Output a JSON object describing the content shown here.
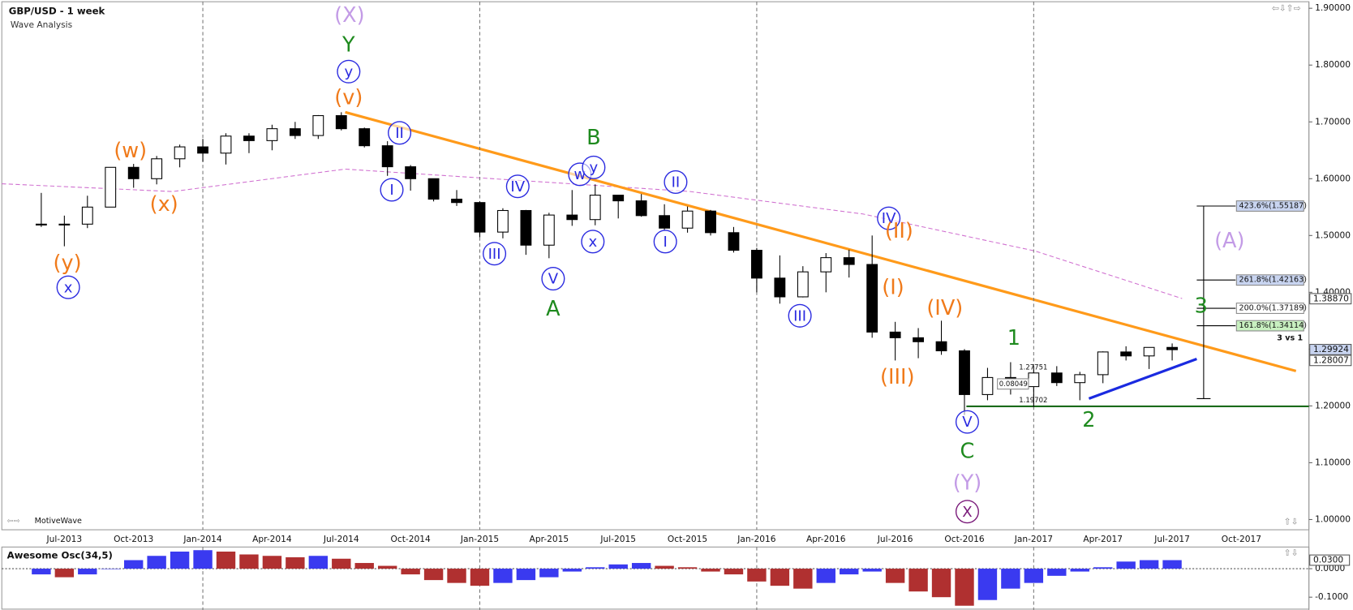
{
  "chart_data": {
    "type": "candlestick",
    "title": "GBP/USD - 1 week",
    "subtitle": "Wave Analysis",
    "source": "MotiveWave",
    "categories": [
      null,
      "Jul-2013",
      null,
      null,
      "Oct-2013",
      null,
      null,
      "Jan-2014",
      null,
      null,
      "Apr-2014",
      null,
      null,
      "Jul-2014",
      null,
      null,
      "Oct-2014",
      null,
      null,
      "Jan-2015",
      null,
      null,
      "Apr-2015",
      null,
      null,
      "Jul-2015",
      null,
      null,
      "Oct-2015",
      null,
      null,
      "Jan-2016",
      null,
      null,
      "Apr-2016",
      null,
      null,
      "Jul-2016",
      null,
      null,
      "Oct-2016",
      null,
      null,
      "Jan-2017",
      null,
      null,
      "Apr-2017",
      null,
      null,
      "Jul-2017",
      null,
      null,
      "Oct-2017",
      null
    ],
    "open": [
      1.52,
      1.52,
      1.52,
      1.55,
      1.62,
      1.6,
      1.635,
      1.656,
      1.645,
      1.675,
      1.667,
      1.688,
      1.676,
      1.711,
      1.688,
      1.658,
      1.621,
      1.6,
      1.564,
      1.558,
      1.506,
      1.544,
      1.483,
      1.536,
      1.528,
      1.571,
      1.561,
      1.535,
      1.513,
      1.543,
      1.505,
      1.474,
      1.425,
      1.392,
      1.436,
      1.461,
      1.449,
      1.33,
      1.32,
      1.313,
      1.297,
      1.22,
      1.25,
      1.234,
      1.258,
      1.241,
      1.255,
      1.295,
      1.288,
      1.303,
      null,
      null,
      null,
      null
    ],
    "high": [
      1.575,
      1.535,
      1.57,
      1.62,
      1.626,
      1.64,
      1.66,
      1.67,
      1.68,
      1.68,
      1.695,
      1.7,
      1.712,
      1.717,
      1.69,
      1.666,
      1.624,
      1.6,
      1.58,
      1.56,
      1.548,
      1.545,
      1.54,
      1.58,
      1.59,
      1.569,
      1.573,
      1.555,
      1.551,
      1.545,
      1.515,
      1.478,
      1.465,
      1.446,
      1.469,
      1.475,
      1.5,
      1.348,
      1.337,
      1.35,
      1.3,
      1.267,
      1.277,
      1.27,
      1.27,
      1.26,
      1.296,
      1.305,
      1.3,
      1.31,
      null,
      null,
      null,
      null
    ],
    "low": [
      1.515,
      1.481,
      1.513,
      1.55,
      1.584,
      1.59,
      1.62,
      1.63,
      1.625,
      1.645,
      1.65,
      1.67,
      1.67,
      1.685,
      1.655,
      1.605,
      1.579,
      1.56,
      1.552,
      1.497,
      1.495,
      1.466,
      1.46,
      1.517,
      1.518,
      1.53,
      1.533,
      1.51,
      1.505,
      1.5,
      1.47,
      1.4,
      1.38,
      1.391,
      1.4,
      1.426,
      1.32,
      1.28,
      1.284,
      1.29,
      1.184,
      1.21,
      1.22,
      1.198,
      1.235,
      1.21,
      1.24,
      1.28,
      1.265,
      1.28,
      null,
      null,
      null,
      null
    ],
    "close": [
      1.52,
      1.52,
      1.55,
      1.62,
      1.6,
      1.635,
      1.656,
      1.645,
      1.675,
      1.667,
      1.688,
      1.676,
      1.711,
      1.688,
      1.658,
      1.621,
      1.6,
      1.564,
      1.558,
      1.506,
      1.544,
      1.483,
      1.536,
      1.528,
      1.571,
      1.561,
      1.535,
      1.513,
      1.543,
      1.505,
      1.474,
      1.425,
      1.392,
      1.436,
      1.461,
      1.449,
      1.33,
      1.32,
      1.313,
      1.297,
      1.22,
      1.25,
      1.234,
      1.258,
      1.241,
      1.255,
      1.295,
      1.288,
      1.303,
      1.299,
      null,
      null,
      null,
      null
    ],
    "up_color": "#ffffff",
    "down_color": "#000000",
    "ylim": [
      0.982,
      1.91
    ],
    "yticks": [
      {
        "value": 1.0,
        "label": "1.00000"
      },
      {
        "value": 1.1,
        "label": "1.10000"
      },
      {
        "value": 1.2,
        "label": "1.20000"
      },
      {
        "value": 1.3,
        "label": "1.30000"
      },
      {
        "value": 1.4,
        "label": "1.40000"
      },
      {
        "value": 1.5,
        "label": "1.50000"
      },
      {
        "value": 1.6,
        "label": "1.60000"
      },
      {
        "value": 1.7,
        "label": "1.70000"
      },
      {
        "value": 1.8,
        "label": "1.80000"
      },
      {
        "value": 1.9,
        "label": "1.90000"
      }
    ],
    "price_tags": [
      {
        "value": 1.3887,
        "label": "1.38870"
      },
      {
        "value": 1.29924,
        "label": "1.29924"
      },
      {
        "value": 1.28007,
        "label": "1.28007"
      }
    ],
    "fib_levels": [
      {
        "value": 1.55187,
        "label": "423.6%(1.55187)",
        "color": "#c8d4f0"
      },
      {
        "value": 1.42163,
        "label": "261.8%(1.42163)",
        "color": "#c8d4f0"
      },
      {
        "value": 1.37189,
        "label": "200.0%(1.37189)",
        "color": "#ffffff"
      },
      {
        "value": 1.34114,
        "label": "161.8%(1.34114)",
        "color": "#c8f0c0"
      }
    ],
    "notes": [
      "3 vs 1",
      "1.27751",
      "0.08049",
      "1.19702"
    ],
    "wave_labels": [
      {
        "text": "(X)",
        "color": "#c39be6"
      },
      {
        "text": "Y",
        "color": "#1e8a1e"
      },
      {
        "text": "y",
        "color": "#2a2ae0",
        "circled": true
      },
      {
        "text": "(v)",
        "color": "#f07a1a"
      },
      {
        "text": "(w)",
        "color": "#f07a1a"
      },
      {
        "text": "(x)",
        "color": "#f07a1a"
      },
      {
        "text": "(y)",
        "color": "#f07a1a"
      },
      {
        "text": "x",
        "color": "#2a2ae0",
        "circled": true
      },
      {
        "text": "II",
        "color": "#2a2ae0",
        "circled": true
      },
      {
        "text": "I",
        "color": "#2a2ae0",
        "circled": true
      },
      {
        "text": "B",
        "color": "#1e8a1e"
      },
      {
        "text": "w",
        "color": "#2a2ae0",
        "circled": true
      },
      {
        "text": "y",
        "color": "#2a2ae0",
        "circled": true
      },
      {
        "text": "IV",
        "color": "#2a2ae0",
        "circled": true
      },
      {
        "text": "III",
        "color": "#2a2ae0",
        "circled": true
      },
      {
        "text": "x",
        "color": "#2a2ae0",
        "circled": true
      },
      {
        "text": "V",
        "color": "#2a2ae0",
        "circled": true
      },
      {
        "text": "A",
        "color": "#1e8a1e"
      },
      {
        "text": "II",
        "color": "#2a2ae0",
        "circled": true
      },
      {
        "text": "I",
        "color": "#2a2ae0",
        "circled": true
      },
      {
        "text": "IV",
        "color": "#2a2ae0",
        "circled": true
      },
      {
        "text": "(II)",
        "color": "#f07a1a"
      },
      {
        "text": "(I)",
        "color": "#f07a1a"
      },
      {
        "text": "(IV)",
        "color": "#f07a1a"
      },
      {
        "text": "III",
        "color": "#2a2ae0",
        "circled": true
      },
      {
        "text": "(III)",
        "color": "#f07a1a"
      },
      {
        "text": "1",
        "color": "#1e8a1e"
      },
      {
        "text": "V",
        "color": "#2a2ae0",
        "circled": true
      },
      {
        "text": "C",
        "color": "#1e8a1e"
      },
      {
        "text": "(Y)",
        "color": "#c39be6"
      },
      {
        "text": "X",
        "color": "#7a1a7a",
        "circled": true
      },
      {
        "text": "2",
        "color": "#1e8a1e"
      },
      {
        "text": "3",
        "color": "#1e8a1e"
      },
      {
        "text": "(A)",
        "color": "#c39be6"
      }
    ],
    "oscillator": {
      "title": "Awesome Osc(34,5)",
      "values": [
        -0.02,
        -0.03,
        -0.02,
        0.0,
        0.03,
        0.045,
        0.06,
        0.065,
        0.06,
        0.05,
        0.045,
        0.04,
        0.045,
        0.035,
        0.02,
        0.01,
        -0.02,
        -0.04,
        -0.05,
        -0.06,
        -0.05,
        -0.04,
        -0.03,
        -0.01,
        0.005,
        0.015,
        0.02,
        0.01,
        0.005,
        -0.01,
        -0.02,
        -0.045,
        -0.06,
        -0.07,
        -0.05,
        -0.02,
        -0.01,
        -0.05,
        -0.08,
        -0.1,
        -0.13,
        -0.11,
        -0.07,
        -0.05,
        -0.025,
        -0.01,
        0.005,
        0.025,
        0.03,
        0.03,
        null,
        null,
        null,
        null
      ],
      "up_color": "#3a3af0",
      "down_color": "#b03030",
      "ylim": [
        -0.145,
        0.07
      ],
      "yticks": [
        {
          "value": 0.0,
          "label": "0.0000"
        },
        {
          "value": -0.1,
          "label": "-0.1000"
        }
      ],
      "current": {
        "value": 0.03,
        "label": "0.0300"
      }
    }
  }
}
